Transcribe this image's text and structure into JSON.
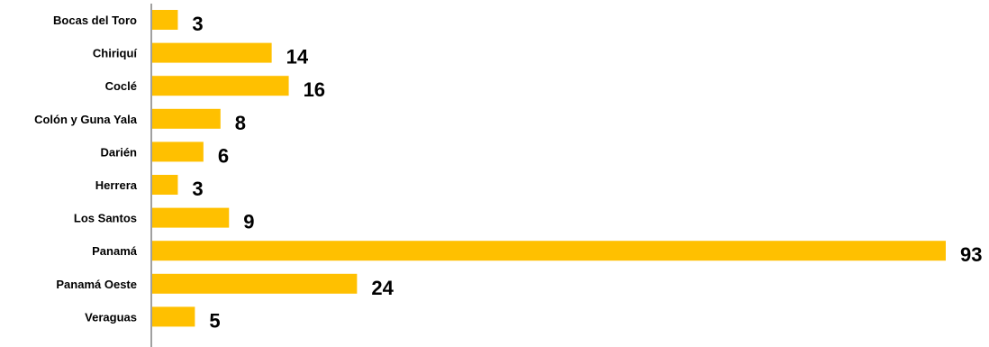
{
  "chart_data": {
    "type": "bar",
    "orientation": "horizontal",
    "categories": [
      "Bocas del Toro",
      "Chiriquí",
      "Coclé",
      "Colón y Guna Yala",
      "Darién",
      "Herrera",
      "Los Santos",
      "Panamá",
      "Panamá Oeste",
      "Veraguas"
    ],
    "values": [
      3,
      14,
      16,
      8,
      6,
      3,
      9,
      93,
      24,
      5
    ],
    "title": "",
    "xlabel": "",
    "ylabel": "",
    "xlim": [
      0,
      93
    ],
    "grid": false,
    "legend": "none",
    "bar_color": "#FFC000",
    "axis_color": "#808080"
  }
}
